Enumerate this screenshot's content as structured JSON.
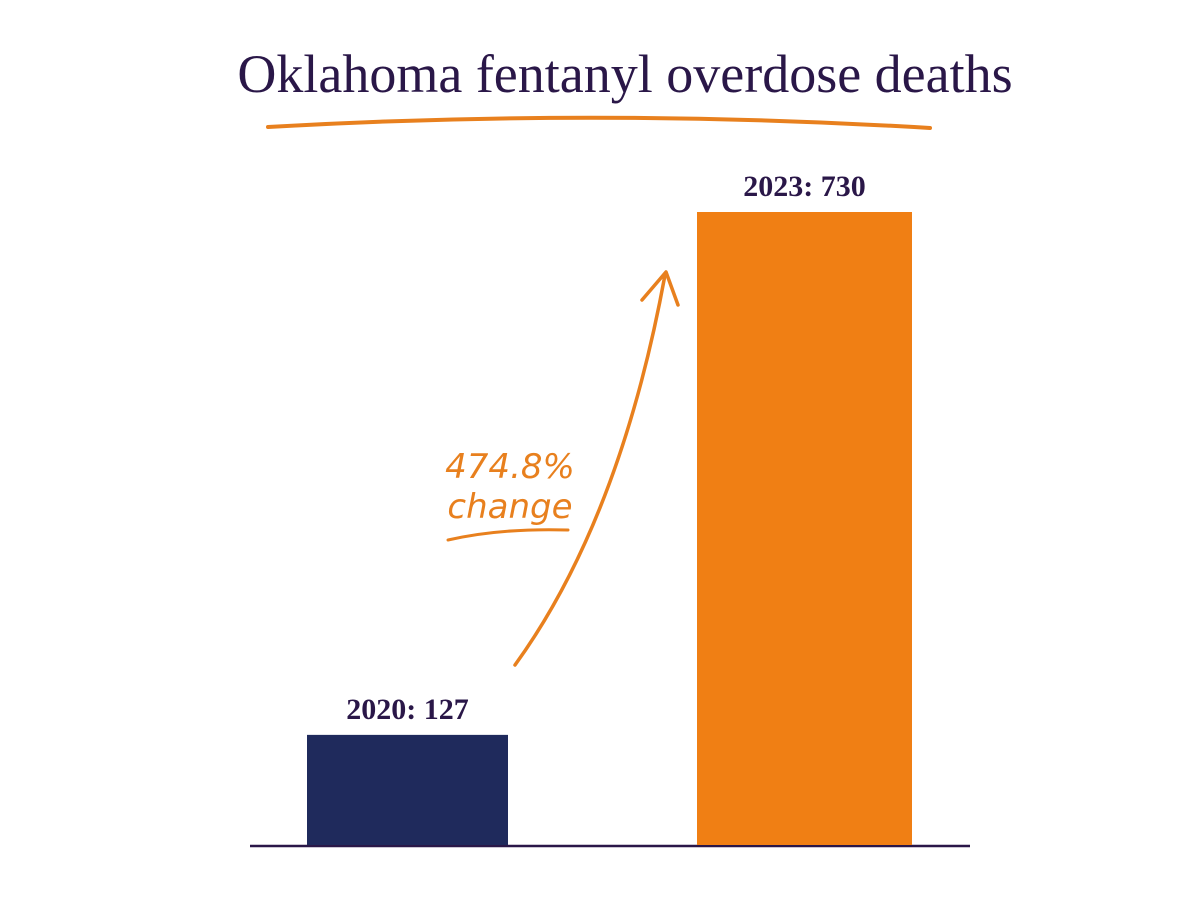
{
  "chart_data": {
    "type": "bar",
    "title": "Oklahoma fentanyl overdose deaths",
    "values": [
      127,
      730
    ],
    "value_labels": [
      "2020: 127",
      "2023: 730"
    ],
    "colors": [
      "#1f2a5c",
      "#f07f14"
    ],
    "annotation": [
      "474.8%",
      "change"
    ]
  }
}
